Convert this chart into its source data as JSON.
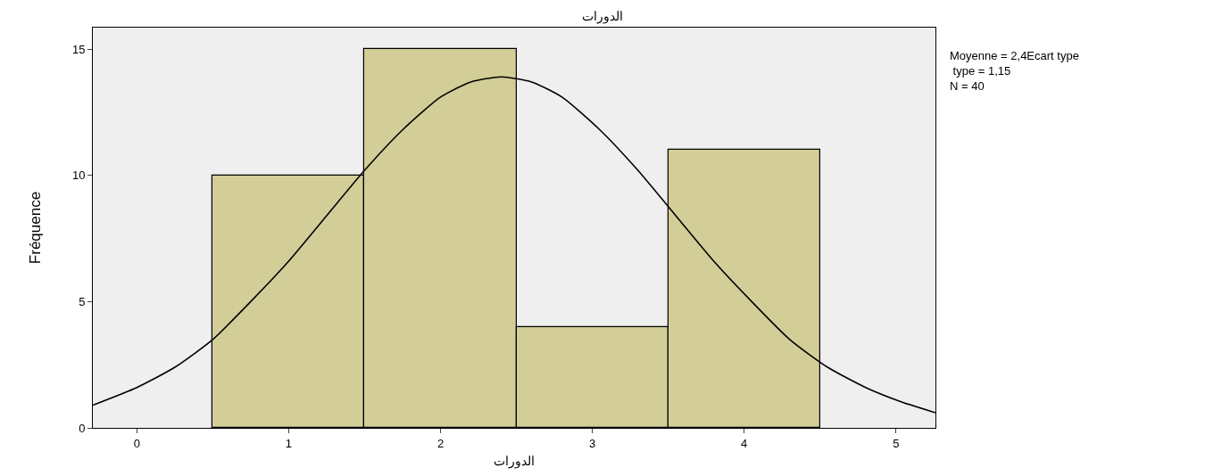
{
  "chart_data": {
    "type": "histogram",
    "title": "الدورات",
    "xlabel": "الدورات",
    "ylabel": "Fréquence",
    "bins": [
      0.5,
      1.5,
      2.5,
      3.5,
      4.5
    ],
    "values": [
      10,
      15,
      4,
      11
    ],
    "color": "#d3cd98",
    "series": [
      {
        "type": "line",
        "color": "#000000",
        "x": [
          -0.29,
          0,
          0.25,
          0.5,
          0.75,
          1,
          1.25,
          1.5,
          1.75,
          2,
          2.2,
          2.4,
          2.6,
          2.8,
          3.05,
          3.3,
          3.55,
          3.8,
          4.05,
          4.3,
          4.55,
          4.8,
          5.05,
          5.26
        ],
        "values": [
          0.9,
          1.6,
          2.4,
          3.5,
          5.0,
          6.6,
          8.4,
          10.2,
          11.8,
          13.1,
          13.7,
          13.9,
          13.7,
          13.1,
          11.8,
          10.2,
          8.4,
          6.6,
          5.0,
          3.5,
          2.4,
          1.6,
          1.0,
          0.6
        ]
      }
    ],
    "xlim": [
      -0.29,
      5.26
    ],
    "xticks": [
      0,
      1,
      2,
      3,
      4,
      5
    ],
    "ylim": [
      0,
      15.85
    ],
    "yticks": [
      0,
      5,
      10,
      15
    ],
    "grid": false,
    "annotations": [
      "Moyenne = 2,4Ecart type\n type = 1,15\nN = 40"
    ]
  }
}
